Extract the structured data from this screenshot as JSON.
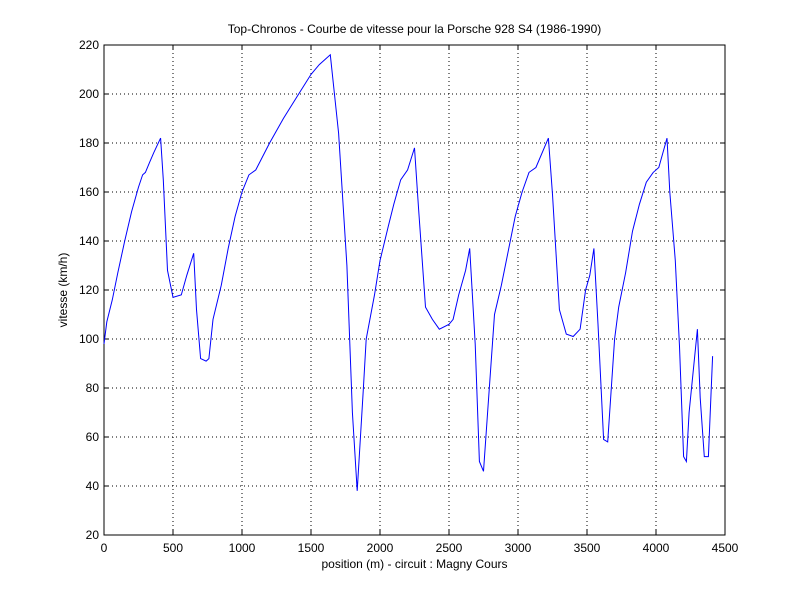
{
  "chart_data": {
    "type": "line",
    "title": "Top-Chronos - Courbe de vitesse pour la Porsche 928 S4 (1986-1990)",
    "xlabel": "position (m) - circuit : Magny Cours",
    "ylabel": "vitesse (km/h)",
    "xlim": [
      0,
      4500
    ],
    "ylim": [
      20,
      220
    ],
    "xticks": [
      0,
      500,
      1000,
      1500,
      2000,
      2500,
      3000,
      3500,
      4000,
      4500
    ],
    "yticks": [
      20,
      40,
      60,
      80,
      100,
      120,
      140,
      160,
      180,
      200,
      220
    ],
    "grid": true,
    "line_color": "#0000ff",
    "series": [
      {
        "x": [
          0,
          20,
          60,
          100,
          150,
          200,
          250,
          280,
          300,
          330,
          360,
          410,
          430,
          460,
          500,
          560,
          600,
          650,
          670,
          700,
          740,
          760,
          790,
          850,
          900,
          950,
          1000,
          1050,
          1100,
          1200,
          1300,
          1400,
          1500,
          1560,
          1640,
          1700,
          1760,
          1800,
          1835,
          1880,
          1900,
          1960,
          2000,
          2060,
          2100,
          2150,
          2200,
          2250,
          2280,
          2330,
          2380,
          2430,
          2500,
          2530,
          2570,
          2620,
          2650,
          2690,
          2720,
          2750,
          2780,
          2830,
          2880,
          2930,
          2980,
          3030,
          3080,
          3130,
          3220,
          3250,
          3300,
          3350,
          3400,
          3450,
          3490,
          3520,
          3550,
          3580,
          3620,
          3650,
          3700,
          3730,
          3780,
          3830,
          3880,
          3930,
          3980,
          4020,
          4080,
          4100,
          4140,
          4170,
          4200,
          4220,
          4240,
          4300,
          4320,
          4350,
          4380,
          4410
        ],
        "y": [
          98,
          107,
          116,
          127,
          140,
          152,
          162,
          167,
          168,
          172,
          176,
          182,
          165,
          128,
          117,
          118,
          126,
          135,
          112,
          92,
          91,
          92,
          108,
          122,
          137,
          150,
          160,
          167,
          169,
          180,
          190,
          199,
          208,
          212,
          216,
          184,
          130,
          70,
          38,
          80,
          100,
          118,
          132,
          146,
          155,
          165,
          169,
          178,
          153,
          113,
          108,
          104,
          106,
          108,
          118,
          128,
          137,
          98,
          50,
          46,
          70,
          110,
          122,
          136,
          150,
          160,
          168,
          170,
          182,
          159,
          112,
          102,
          101,
          104,
          120,
          126,
          137,
          106,
          59,
          58,
          100,
          113,
          127,
          144,
          155,
          164,
          168,
          170,
          182,
          160,
          132,
          97,
          52,
          50,
          70,
          104,
          76,
          52,
          52,
          93
        ]
      }
    ]
  }
}
